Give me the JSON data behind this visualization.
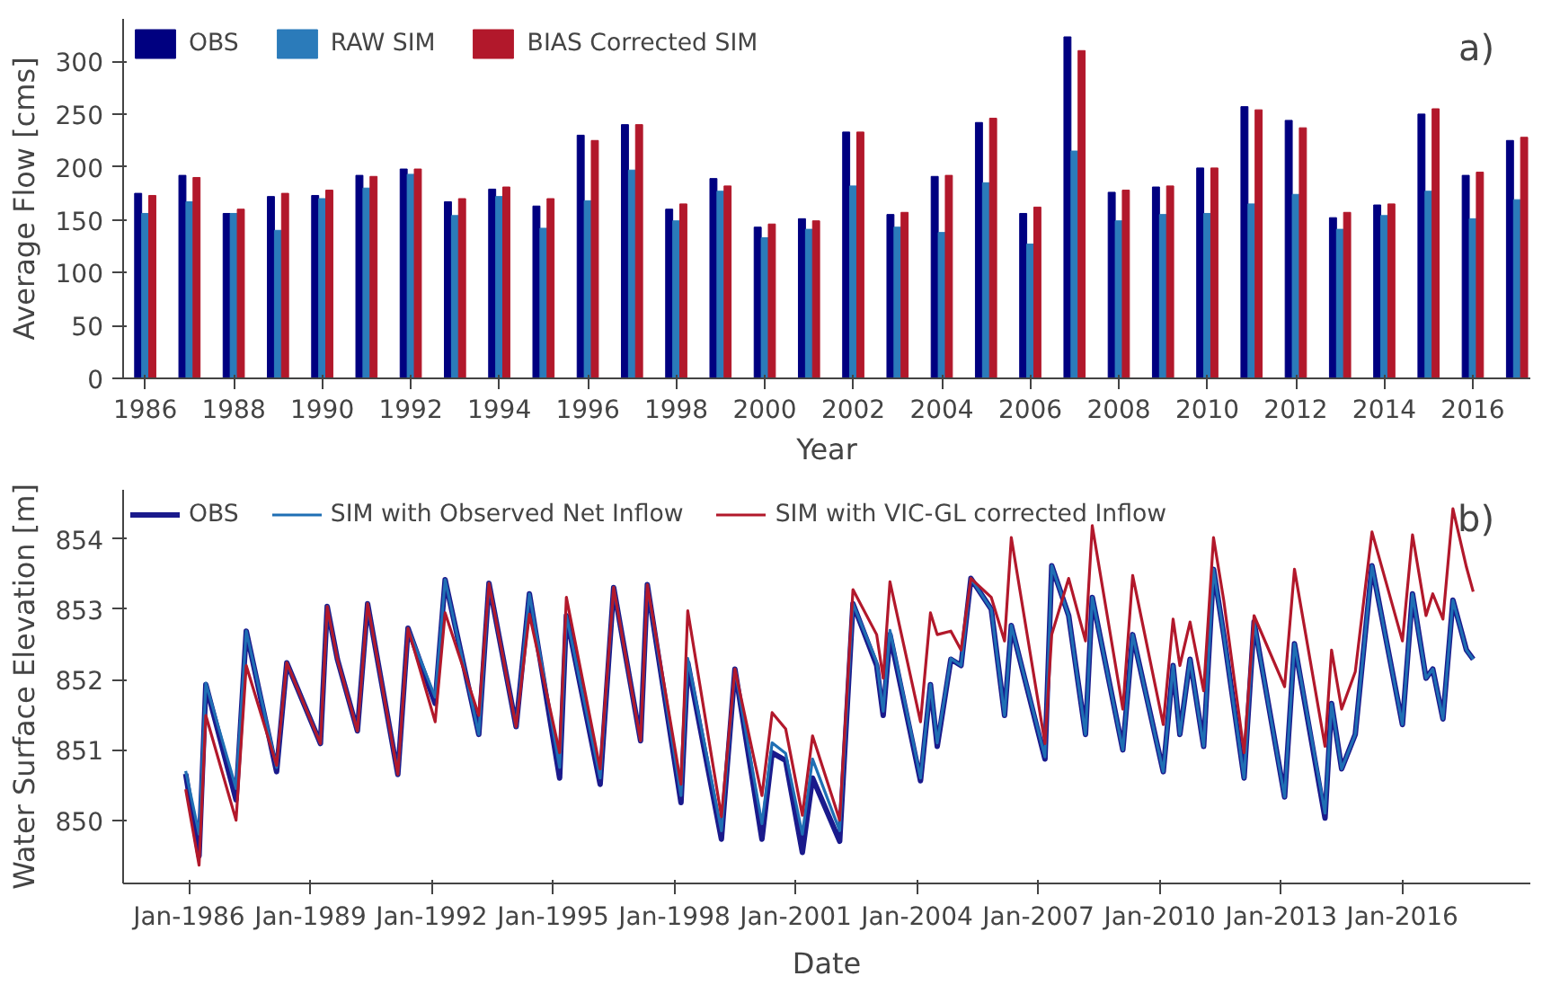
{
  "chart_data": [
    {
      "type": "bar",
      "xlabel": "Year",
      "ylabel": "Average Flow [cms]",
      "annotations": [
        "a)"
      ],
      "x": [
        1986,
        1987,
        1988,
        1989,
        1990,
        1991,
        1992,
        1993,
        1994,
        1995,
        1996,
        1997,
        1998,
        1999,
        2000,
        2001,
        2002,
        2003,
        2004,
        2005,
        2006,
        2007,
        2008,
        2009,
        2010,
        2011,
        2012,
        2013,
        2014,
        2015,
        2016,
        2017
      ],
      "xlim": [
        1985.5,
        2017.3
      ],
      "xticks": [
        1986,
        1988,
        1990,
        1992,
        1994,
        1996,
        1998,
        2000,
        2002,
        2004,
        2006,
        2008,
        2010,
        2012,
        2014,
        2016
      ],
      "ylim": [
        0,
        340
      ],
      "yticks": [
        0,
        50,
        100,
        150,
        200,
        250,
        300
      ],
      "grid": false,
      "legend": "top left",
      "series": [
        {
          "name": "OBS",
          "color": "#000080",
          "values": [
            175,
            192,
            156,
            172,
            173,
            192,
            198,
            167,
            179,
            163,
            230,
            240,
            160,
            189,
            143,
            151,
            233,
            155,
            191,
            242,
            156,
            323,
            176,
            181,
            199,
            257,
            244,
            152,
            164,
            250,
            192,
            225
          ]
        },
        {
          "name": "RAW SIM",
          "color": "#2b7bba",
          "values": [
            156,
            167,
            156,
            140,
            170,
            180,
            193,
            154,
            172,
            142,
            168,
            197,
            149,
            177,
            133,
            141,
            182,
            143,
            138,
            185,
            127,
            215,
            149,
            155,
            156,
            165,
            174,
            141,
            154,
            177,
            151,
            169
          ]
        },
        {
          "name": "BIAS Corrected SIM",
          "color": "#b2182b",
          "values": [
            173,
            190,
            160,
            175,
            178,
            191,
            198,
            170,
            181,
            170,
            225,
            240,
            165,
            182,
            146,
            149,
            233,
            157,
            192,
            246,
            162,
            310,
            178,
            182,
            199,
            254,
            237,
            157,
            165,
            255,
            195,
            228
          ]
        }
      ]
    },
    {
      "type": "line",
      "xlabel": "Date",
      "ylabel": "Water Surface Elevation [m]",
      "annotations": [
        "b)"
      ],
      "x": [
        "1985-12",
        "1986-04",
        "1986-06",
        "1987-03",
        "1987-06",
        "1988-03",
        "1988-06",
        "1989-04",
        "1989-06",
        "1989-09",
        "1990-03",
        "1990-06",
        "1991-03",
        "1991-06",
        "1992-02",
        "1992-05",
        "1993-03",
        "1993-06",
        "1994-02",
        "1994-06",
        "1995-03",
        "1995-05",
        "1996-03",
        "1996-07",
        "1997-03",
        "1997-05",
        "1998-03",
        "1998-05",
        "1999-03",
        "1999-07",
        "2000-03",
        "2000-06",
        "2000-10",
        "2001-03",
        "2001-06",
        "2002-02",
        "2002-06",
        "2003-01",
        "2003-03",
        "2003-05",
        "2004-02",
        "2004-05",
        "2004-07",
        "2004-11",
        "2005-02",
        "2005-05",
        "2005-11",
        "2006-03",
        "2006-05",
        "2007-03",
        "2007-05",
        "2007-10",
        "2008-03",
        "2008-05",
        "2009-02",
        "2009-05",
        "2010-02",
        "2010-05",
        "2010-07",
        "2010-10",
        "2011-02",
        "2011-05",
        "2011-08",
        "2012-02",
        "2012-05",
        "2013-02",
        "2013-05",
        "2014-02",
        "2014-04",
        "2014-07",
        "2014-11",
        "2015-04",
        "2016-01",
        "2016-04",
        "2016-08",
        "2016-10",
        "2017-01",
        "2017-04",
        "2017-08",
        "2017-10"
      ],
      "xlim": [
        "1984-05-15",
        "2019-03-01"
      ],
      "xticks": [
        {
          "value": "1986-01-01",
          "label": "Jan-1986"
        },
        {
          "value": "1989-01-01",
          "label": "Jan-1989"
        },
        {
          "value": "1992-01-01",
          "label": "Jan-1992"
        },
        {
          "value": "1995-01-01",
          "label": "Jan-1995"
        },
        {
          "value": "1998-01-01",
          "label": "Jan-1998"
        },
        {
          "value": "2001-01-01",
          "label": "Jan-2001"
        },
        {
          "value": "2004-01-01",
          "label": "Jan-2004"
        },
        {
          "value": "2007-01-01",
          "label": "Jan-2007"
        },
        {
          "value": "2010-01-01",
          "label": "Jan-2010"
        },
        {
          "value": "2013-01-01",
          "label": "Jan-2013"
        },
        {
          "value": "2016-01-01",
          "label": "Jan-2016"
        }
      ],
      "ylim": [
        849.1,
        854.7
      ],
      "yticks": [
        850,
        851,
        852,
        853,
        854
      ],
      "grid": false,
      "legend": "top left",
      "marker": "none",
      "line_style": "solid",
      "series": [
        {
          "name": "OBS",
          "color": "#1a1a8c",
          "values": [
            850.66,
            849.49,
            851.93,
            850.29,
            852.69,
            850.69,
            852.24,
            851.09,
            853.04,
            852.29,
            851.27,
            853.08,
            850.65,
            852.73,
            851.66,
            853.42,
            851.22,
            853.37,
            851.33,
            853.22,
            850.6,
            852.91,
            850.51,
            853.31,
            851.13,
            853.35,
            850.25,
            852.24,
            849.73,
            852.15,
            849.73,
            850.96,
            850.85,
            849.54,
            850.6,
            849.7,
            853.08,
            852.2,
            851.49,
            852.64,
            850.56,
            851.93,
            851.05,
            852.29,
            852.2,
            853.44,
            853.0,
            851.49,
            852.77,
            850.87,
            853.62,
            852.91,
            851.22,
            853.17,
            851.0,
            852.64,
            850.69,
            852.2,
            851.22,
            852.29,
            851.05,
            853.57,
            852.64,
            850.6,
            852.82,
            850.33,
            852.51,
            850.03,
            851.66,
            850.73,
            851.22,
            853.62,
            851.36,
            853.22,
            852.02,
            852.15,
            851.44,
            853.13,
            852.42,
            852.29
          ]
        },
        {
          "name": "SIM with Observed Net Inflow",
          "color": "#1f6fb4",
          "values": [
            850.7,
            849.8,
            851.95,
            850.45,
            852.69,
            850.75,
            852.24,
            851.09,
            853.04,
            852.29,
            851.27,
            853.08,
            850.65,
            852.73,
            851.75,
            853.42,
            851.22,
            853.37,
            851.33,
            853.22,
            850.75,
            852.91,
            850.6,
            853.31,
            851.13,
            853.35,
            850.35,
            852.3,
            849.85,
            852.15,
            849.95,
            851.1,
            850.95,
            849.8,
            850.87,
            849.85,
            853.08,
            852.25,
            851.55,
            852.7,
            850.6,
            851.93,
            851.1,
            852.3,
            852.2,
            853.44,
            853.0,
            851.49,
            852.77,
            850.9,
            853.62,
            852.91,
            851.22,
            853.17,
            851.0,
            852.64,
            850.69,
            852.2,
            851.22,
            852.29,
            851.05,
            853.57,
            852.64,
            850.6,
            852.82,
            850.33,
            852.51,
            850.1,
            851.66,
            850.73,
            851.22,
            853.62,
            851.36,
            853.22,
            852.02,
            852.15,
            851.44,
            853.13,
            852.42,
            852.29
          ]
        },
        {
          "name": "SIM with VIC-GL corrected Inflow",
          "color": "#b2182b",
          "values": [
            850.44,
            849.36,
            851.49,
            850.0,
            852.2,
            850.78,
            852.24,
            851.09,
            853.04,
            852.29,
            851.27,
            853.08,
            850.65,
            852.73,
            851.4,
            852.95,
            851.49,
            853.37,
            851.33,
            852.93,
            850.96,
            853.17,
            850.73,
            853.31,
            851.13,
            853.35,
            850.51,
            852.98,
            850.05,
            852.15,
            850.35,
            851.53,
            851.3,
            850.07,
            851.2,
            850.0,
            853.28,
            852.64,
            852.02,
            853.39,
            851.4,
            852.95,
            852.64,
            852.69,
            852.42,
            853.44,
            853.17,
            852.55,
            854.02,
            851.09,
            852.64,
            853.44,
            852.55,
            854.19,
            851.58,
            853.48,
            851.36,
            852.86,
            852.2,
            852.82,
            851.84,
            854.02,
            853.13,
            850.96,
            852.91,
            851.9,
            853.57,
            851.05,
            852.42,
            851.58,
            852.11,
            854.1,
            852.55,
            854.06,
            852.91,
            853.22,
            852.86,
            854.43,
            853.6,
            853.25
          ]
        }
      ]
    }
  ]
}
